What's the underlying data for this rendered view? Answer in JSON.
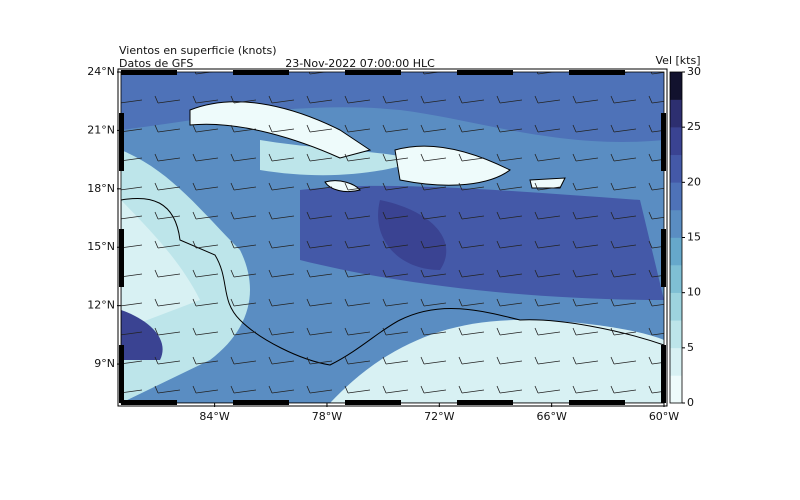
{
  "chart_data": {
    "type": "map",
    "title": "Vientos en superficie (knots)",
    "subtitle": "Datos de GFS",
    "date": "23-Nov-2022 07:00:00  HLC",
    "xlim": [
      -89,
      -60
    ],
    "ylim": [
      7,
      24
    ],
    "xticks": [
      {
        "value": -84,
        "label": "84°W"
      },
      {
        "value": -78,
        "label": "78°W"
      },
      {
        "value": -72,
        "label": "72°W"
      },
      {
        "value": -66,
        "label": "66°W"
      },
      {
        "value": -60,
        "label": "60°W"
      }
    ],
    "yticks": [
      {
        "value": 9,
        "label": "9°N"
      },
      {
        "value": 12,
        "label": "12°N"
      },
      {
        "value": 15,
        "label": "15°N"
      },
      {
        "value": 18,
        "label": "18°N"
      },
      {
        "value": 21,
        "label": "21°N"
      },
      {
        "value": 24,
        "label": "24°N"
      }
    ],
    "colorbar": {
      "label": "Vel [kts]",
      "lim": [
        0,
        30
      ],
      "ticks": [
        0,
        5,
        10,
        15,
        20,
        25,
        30
      ],
      "colors": [
        "#eefbfb",
        "#d8f1f3",
        "#bde5ea",
        "#9dd3de",
        "#7fbfd4",
        "#66a8cb",
        "#5a8dc2",
        "#4e72b8",
        "#4459a8",
        "#3a4392",
        "#2d2f70",
        "#12122e"
      ]
    }
  }
}
